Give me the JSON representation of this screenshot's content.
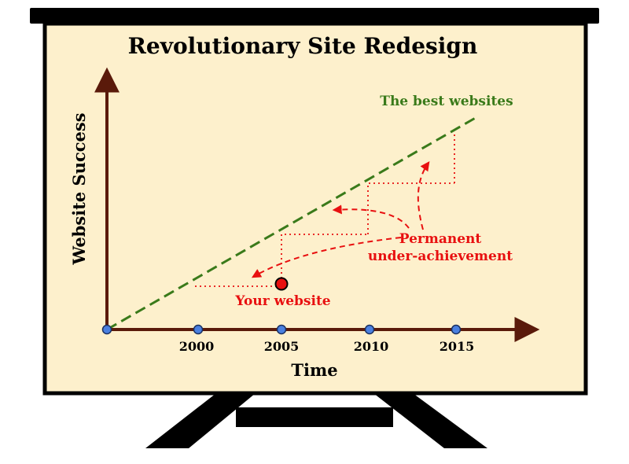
{
  "title": "Revolutionary Site Redesign",
  "y_axis_label": "Website Success",
  "x_axis_label": "Time",
  "x_ticks": [
    "2000",
    "2005",
    "2010",
    "2015"
  ],
  "best_line_label": "The best websites",
  "your_site_label": "Your website",
  "annotation": {
    "line1": "Permanent",
    "line2": "under-achievement"
  },
  "colors": {
    "board_fill": "#fdf0cc",
    "frame": "#000000",
    "axis": "#5a1a0a",
    "best_line": "#3a7a1a",
    "annotation": "#e81010",
    "tick_dot": "#4a80e0"
  }
}
